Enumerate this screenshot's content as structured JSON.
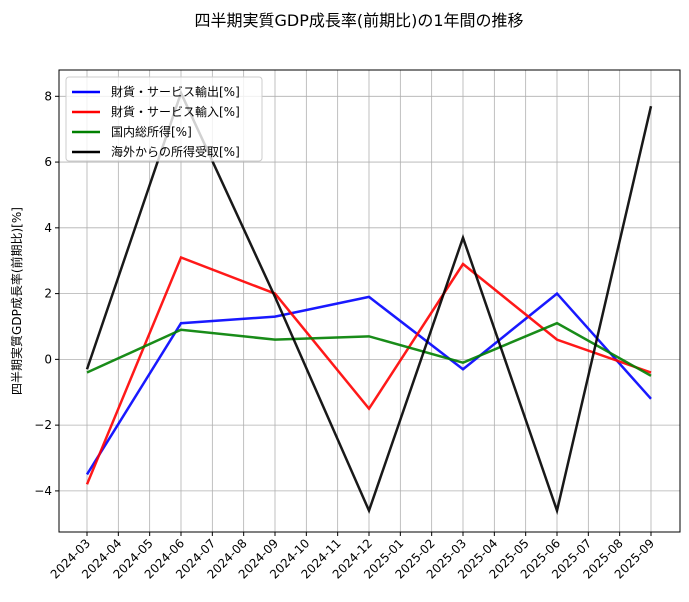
{
  "chart_data": {
    "type": "line",
    "title": "四半期実質GDP成長率(前期比)の1年間の推移",
    "xlabel": "",
    "ylabel": "四半期実質GDP成長率(前期比)[%]",
    "x_ticks": [
      "2024-03",
      "2024-04",
      "2024-05",
      "2024-06",
      "2024-07",
      "2024-08",
      "2024-09",
      "2024-10",
      "2024-11",
      "2024-12",
      "2025-01",
      "2025-02",
      "2025-03",
      "2025-04",
      "2025-05",
      "2025-06",
      "2025-07",
      "2025-08",
      "2025-09"
    ],
    "y_ticks": [
      -4,
      -2,
      0,
      2,
      4,
      6,
      8
    ],
    "ylim": [
      -5.25,
      8.8
    ],
    "grid": true,
    "legend_position": "top-left",
    "x": [
      "2024-03",
      "2024-06",
      "2024-09",
      "2024-12",
      "2025-03",
      "2025-06",
      "2025-09"
    ],
    "series": [
      {
        "name": "財貨・サービス輸出[%]",
        "color": "#0000ff",
        "values": [
          -3.5,
          1.1,
          1.3,
          1.9,
          -0.3,
          2.0,
          -1.2
        ]
      },
      {
        "name": "財貨・サービス輸入[%]",
        "color": "#ff0000",
        "values": [
          -3.8,
          3.1,
          2.0,
          -1.5,
          2.9,
          0.6,
          -0.4
        ]
      },
      {
        "name": "国内総所得[%]",
        "color": "#008000",
        "values": [
          -0.4,
          0.9,
          0.6,
          0.7,
          -0.1,
          1.1,
          -0.5
        ]
      },
      {
        "name": "海外からの所得受取[%]",
        "color": "#000000",
        "values": [
          -0.3,
          8.1,
          1.9,
          -4.6,
          3.7,
          -4.6,
          7.7
        ]
      }
    ]
  }
}
